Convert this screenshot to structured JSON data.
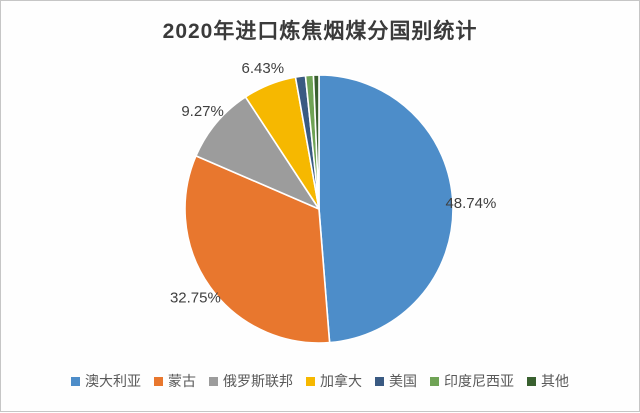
{
  "chart_data": {
    "type": "pie",
    "title": "2020年进口炼焦烟煤分国别统计",
    "unit": "%",
    "direction": "clockwise",
    "start_angle_deg": 0,
    "legend_position": "bottom",
    "slices": [
      {
        "label": "澳大利亚",
        "value": 48.74,
        "display": "48.74%",
        "color": "#4d8dc9"
      },
      {
        "label": "蒙古",
        "value": 32.75,
        "display": "32.75%",
        "color": "#e8772e"
      },
      {
        "label": "俄罗斯联邦",
        "value": 9.27,
        "display": "9.27%",
        "color": "#9c9c9c"
      },
      {
        "label": "加拿大",
        "value": 6.43,
        "display": "6.43%",
        "color": "#f6b800"
      },
      {
        "label": "美国",
        "value": 1.2,
        "display": null,
        "color": "#3a5a82"
      },
      {
        "label": "印度尼西亚",
        "value": 0.95,
        "display": null,
        "color": "#6fa355"
      },
      {
        "label": "其他",
        "value": 0.66,
        "display": null,
        "color": "#39602f"
      }
    ]
  }
}
